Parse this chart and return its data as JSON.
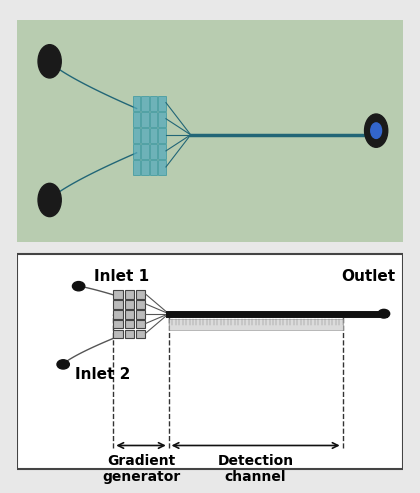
{
  "fig_width": 4.2,
  "fig_height": 4.93,
  "dpi": 100,
  "top_panel_bg": "#b8ccb0",
  "bottom_panel_bg": "#ffffff",
  "inlet1_label": "Inlet 1",
  "inlet2_label": "Inlet 2",
  "outlet_label": "Outlet",
  "gradient_label": "Gradient\ngenerator",
  "detection_label": "Detection\nchannel",
  "main_channel_color": "#111111",
  "node_color": "#111111",
  "dashed_color": "#333333",
  "arrow_color": "#111111",
  "font_size_labels": 11,
  "font_size_bottom": 10
}
